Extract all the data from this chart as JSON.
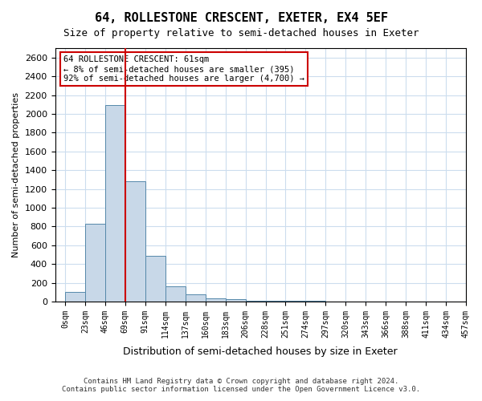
{
  "title": "64, ROLLESTONE CRESCENT, EXETER, EX4 5EF",
  "subtitle": "Size of property relative to semi-detached houses in Exeter",
  "xlabel": "Distribution of semi-detached houses by size in Exeter",
  "ylabel": "Number of semi-detached properties",
  "bin_labels": [
    "0sqm",
    "23sqm",
    "46sqm",
    "69sqm",
    "91sqm",
    "114sqm",
    "137sqm",
    "160sqm",
    "183sqm",
    "206sqm",
    "228sqm",
    "251sqm",
    "274sqm",
    "297sqm",
    "320sqm",
    "343sqm",
    "366sqm",
    "388sqm",
    "411sqm",
    "434sqm",
    "457sqm"
  ],
  "bar_values": [
    100,
    830,
    2090,
    1280,
    490,
    160,
    75,
    35,
    25,
    10,
    8,
    5,
    5,
    3,
    3,
    2,
    2,
    1,
    1,
    1
  ],
  "bar_color": "#c8d8e8",
  "bar_edge_color": "#5588aa",
  "red_line_x": 3.0,
  "property_line_label": "64 ROLLESTONE CRESCENT: 61sqm",
  "pct_smaller": 8,
  "pct_larger": 92,
  "n_smaller": 395,
  "n_larger": "4,700",
  "annotation_box_color": "#ffffff",
  "annotation_box_edge": "#cc0000",
  "red_line_color": "#cc0000",
  "ylim": [
    0,
    2700
  ],
  "yticks": [
    0,
    200,
    400,
    600,
    800,
    1000,
    1200,
    1400,
    1600,
    1800,
    2000,
    2200,
    2400,
    2600
  ],
  "footer1": "Contains HM Land Registry data © Crown copyright and database right 2024.",
  "footer2": "Contains public sector information licensed under the Open Government Licence v3.0.",
  "bg_color": "#ffffff",
  "grid_color": "#ccddee"
}
